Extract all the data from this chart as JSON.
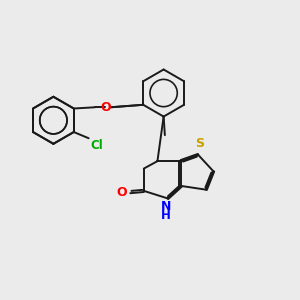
{
  "background_color": "#ebebeb",
  "bond_color": "#1a1a1a",
  "atom_colors": {
    "S": "#c8a000",
    "N": "#0000ff",
    "O": "#ff0000",
    "Cl": "#00aa00"
  },
  "figsize": [
    3.0,
    3.0
  ],
  "dpi": 100,
  "xlim": [
    0,
    12
  ],
  "ylim": [
    0,
    12
  ]
}
